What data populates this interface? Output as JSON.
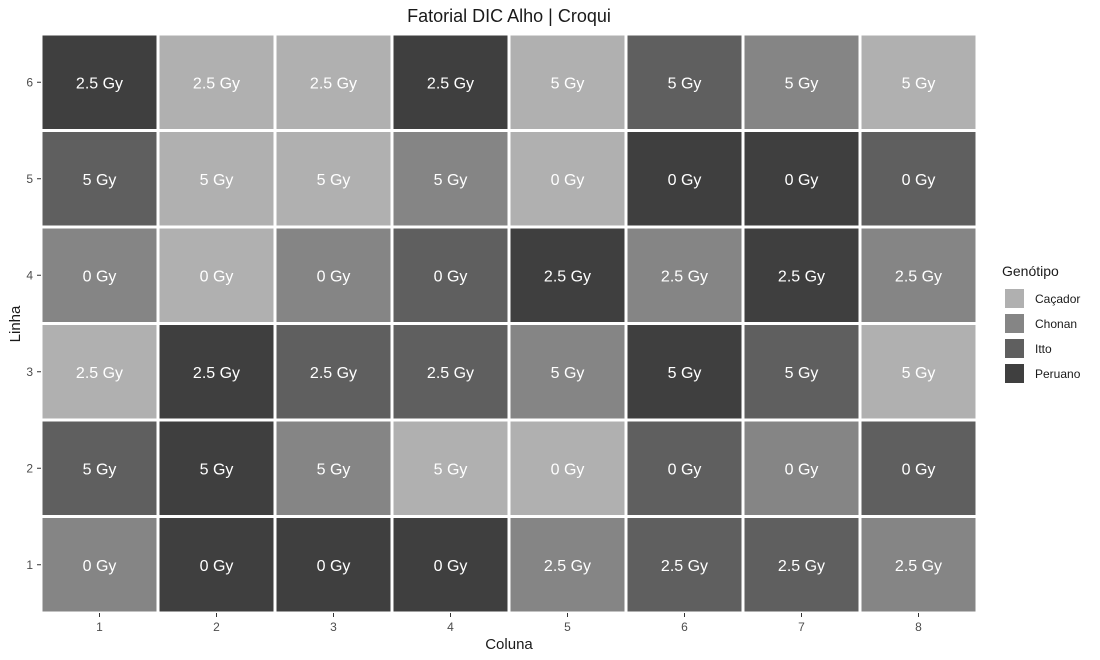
{
  "chart_data": {
    "type": "heatmap",
    "title": "Fatorial DIC Alho | Croqui",
    "xlabel": "Coluna",
    "ylabel": "Linha",
    "x_ticks": [
      "1",
      "2",
      "3",
      "4",
      "5",
      "6",
      "7",
      "8"
    ],
    "y_ticks": [
      "1",
      "2",
      "3",
      "4",
      "5",
      "6"
    ],
    "legend": {
      "title": "Genótipo",
      "position": "right",
      "entries": [
        {
          "name": "Caçador",
          "color": "#b0b0b0"
        },
        {
          "name": "Chonan",
          "color": "#858585"
        },
        {
          "name": "Itto",
          "color": "#5f5f5f"
        },
        {
          "name": "Peruano",
          "color": "#3f3f3f"
        }
      ]
    },
    "cells": [
      {
        "coluna": 1,
        "linha": 6,
        "genotipo": "Peruano",
        "label": "2.5 Gy"
      },
      {
        "coluna": 2,
        "linha": 6,
        "genotipo": "Caçador",
        "label": "2.5 Gy"
      },
      {
        "coluna": 3,
        "linha": 6,
        "genotipo": "Caçador",
        "label": "2.5 Gy"
      },
      {
        "coluna": 4,
        "linha": 6,
        "genotipo": "Peruano",
        "label": "2.5 Gy"
      },
      {
        "coluna": 5,
        "linha": 6,
        "genotipo": "Caçador",
        "label": "5 Gy"
      },
      {
        "coluna": 6,
        "linha": 6,
        "genotipo": "Itto",
        "label": "5 Gy"
      },
      {
        "coluna": 7,
        "linha": 6,
        "genotipo": "Chonan",
        "label": "5 Gy"
      },
      {
        "coluna": 8,
        "linha": 6,
        "genotipo": "Caçador",
        "label": "5 Gy"
      },
      {
        "coluna": 1,
        "linha": 5,
        "genotipo": "Itto",
        "label": "5 Gy"
      },
      {
        "coluna": 2,
        "linha": 5,
        "genotipo": "Caçador",
        "label": "5 Gy"
      },
      {
        "coluna": 3,
        "linha": 5,
        "genotipo": "Caçador",
        "label": "5 Gy"
      },
      {
        "coluna": 4,
        "linha": 5,
        "genotipo": "Chonan",
        "label": "5 Gy"
      },
      {
        "coluna": 5,
        "linha": 5,
        "genotipo": "Caçador",
        "label": "0 Gy"
      },
      {
        "coluna": 6,
        "linha": 5,
        "genotipo": "Peruano",
        "label": "0 Gy"
      },
      {
        "coluna": 7,
        "linha": 5,
        "genotipo": "Peruano",
        "label": "0 Gy"
      },
      {
        "coluna": 8,
        "linha": 5,
        "genotipo": "Itto",
        "label": "0 Gy"
      },
      {
        "coluna": 1,
        "linha": 4,
        "genotipo": "Chonan",
        "label": "0 Gy"
      },
      {
        "coluna": 2,
        "linha": 4,
        "genotipo": "Caçador",
        "label": "0 Gy"
      },
      {
        "coluna": 3,
        "linha": 4,
        "genotipo": "Chonan",
        "label": "0 Gy"
      },
      {
        "coluna": 4,
        "linha": 4,
        "genotipo": "Itto",
        "label": "0 Gy"
      },
      {
        "coluna": 5,
        "linha": 4,
        "genotipo": "Peruano",
        "label": "2.5 Gy"
      },
      {
        "coluna": 6,
        "linha": 4,
        "genotipo": "Chonan",
        "label": "2.5 Gy"
      },
      {
        "coluna": 7,
        "linha": 4,
        "genotipo": "Peruano",
        "label": "2.5 Gy"
      },
      {
        "coluna": 8,
        "linha": 4,
        "genotipo": "Chonan",
        "label": "2.5 Gy"
      },
      {
        "coluna": 1,
        "linha": 3,
        "genotipo": "Caçador",
        "label": "2.5 Gy"
      },
      {
        "coluna": 2,
        "linha": 3,
        "genotipo": "Peruano",
        "label": "2.5 Gy"
      },
      {
        "coluna": 3,
        "linha": 3,
        "genotipo": "Itto",
        "label": "2.5 Gy"
      },
      {
        "coluna": 4,
        "linha": 3,
        "genotipo": "Itto",
        "label": "2.5 Gy"
      },
      {
        "coluna": 5,
        "linha": 3,
        "genotipo": "Chonan",
        "label": "5 Gy"
      },
      {
        "coluna": 6,
        "linha": 3,
        "genotipo": "Peruano",
        "label": "5 Gy"
      },
      {
        "coluna": 7,
        "linha": 3,
        "genotipo": "Itto",
        "label": "5 Gy"
      },
      {
        "coluna": 8,
        "linha": 3,
        "genotipo": "Caçador",
        "label": "5 Gy"
      },
      {
        "coluna": 1,
        "linha": 2,
        "genotipo": "Itto",
        "label": "5 Gy"
      },
      {
        "coluna": 2,
        "linha": 2,
        "genotipo": "Peruano",
        "label": "5 Gy"
      },
      {
        "coluna": 3,
        "linha": 2,
        "genotipo": "Chonan",
        "label": "5 Gy"
      },
      {
        "coluna": 4,
        "linha": 2,
        "genotipo": "Caçador",
        "label": "5 Gy"
      },
      {
        "coluna": 5,
        "linha": 2,
        "genotipo": "Caçador",
        "label": "0 Gy"
      },
      {
        "coluna": 6,
        "linha": 2,
        "genotipo": "Itto",
        "label": "0 Gy"
      },
      {
        "coluna": 7,
        "linha": 2,
        "genotipo": "Chonan",
        "label": "0 Gy"
      },
      {
        "coluna": 8,
        "linha": 2,
        "genotipo": "Itto",
        "label": "0 Gy"
      },
      {
        "coluna": 1,
        "linha": 1,
        "genotipo": "Chonan",
        "label": "0 Gy"
      },
      {
        "coluna": 2,
        "linha": 1,
        "genotipo": "Peruano",
        "label": "0 Gy"
      },
      {
        "coluna": 3,
        "linha": 1,
        "genotipo": "Peruano",
        "label": "0 Gy"
      },
      {
        "coluna": 4,
        "linha": 1,
        "genotipo": "Peruano",
        "label": "0 Gy"
      },
      {
        "coluna": 5,
        "linha": 1,
        "genotipo": "Chonan",
        "label": "2.5 Gy"
      },
      {
        "coluna": 6,
        "linha": 1,
        "genotipo": "Itto",
        "label": "2.5 Gy"
      },
      {
        "coluna": 7,
        "linha": 1,
        "genotipo": "Itto",
        "label": "2.5 Gy"
      },
      {
        "coluna": 8,
        "linha": 1,
        "genotipo": "Chonan",
        "label": "2.5 Gy"
      }
    ]
  }
}
